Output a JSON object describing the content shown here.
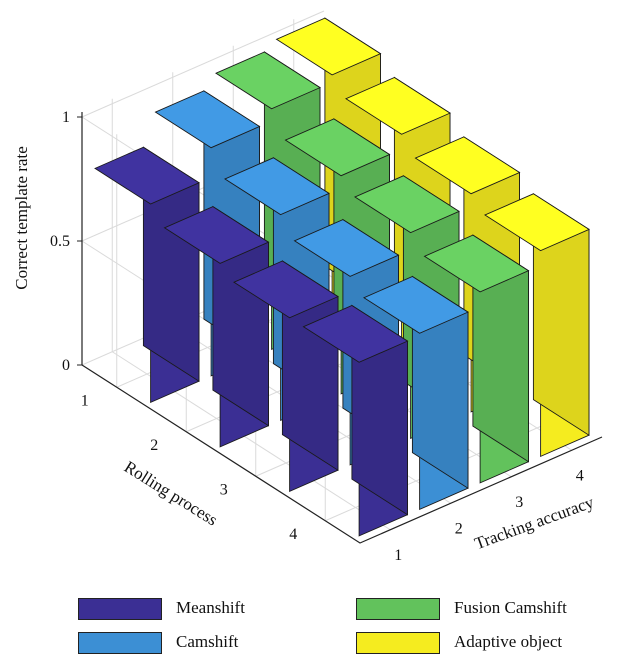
{
  "chart_data": {
    "type": "bar3d",
    "zlabel": "Correct template rate",
    "xlabel": "Rolling process",
    "ylabel": "Tracking accuracy",
    "rolling_process_ticks": [
      "1",
      "2",
      "3",
      "4"
    ],
    "tracking_accuracy_ticks": [
      "1",
      "2",
      "3",
      "4"
    ],
    "z_ticks": [
      "0",
      "0.5",
      "1"
    ],
    "zlim": [
      0,
      1
    ],
    "series": [
      {
        "name": "Meanshift",
        "color": "#3b2f94",
        "values": [
          0.8,
          0.74,
          0.7,
          0.7
        ]
      },
      {
        "name": "Camshift",
        "color": "#3c8fd4",
        "values": [
          0.92,
          0.83,
          0.76,
          0.71
        ]
      },
      {
        "name": "Fusion Camshift",
        "color": "#62c25c",
        "values": [
          0.97,
          0.88,
          0.83,
          0.77
        ]
      },
      {
        "name": "Adaptive object",
        "color": "#f5ec1f",
        "values": [
          1.0,
          0.94,
          0.88,
          0.83
        ]
      }
    ],
    "grid": true
  }
}
